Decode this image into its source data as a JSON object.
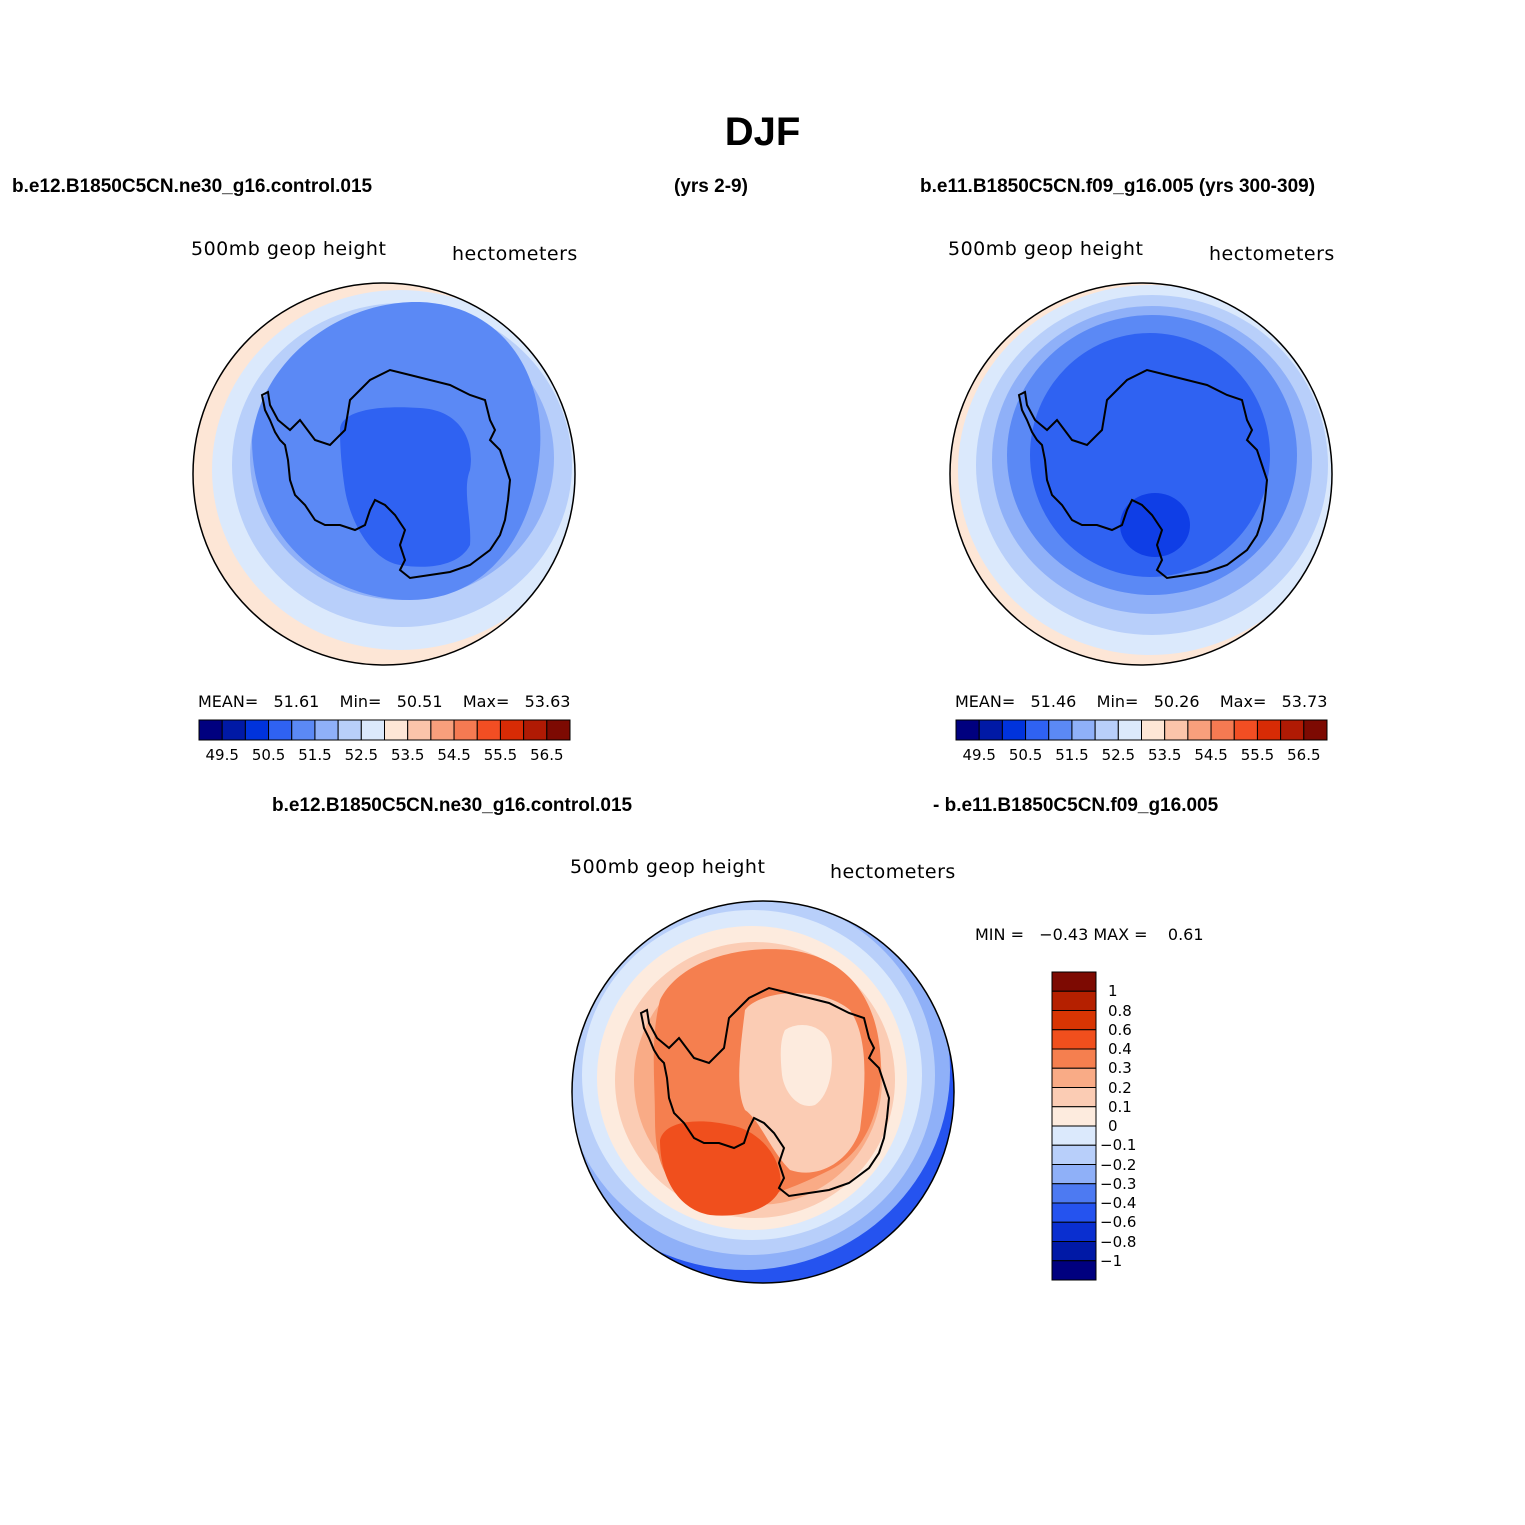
{
  "title": "DJF",
  "top_left": {
    "case": "b.e12.B1850C5CN.ne30_g16.control.015",
    "years": "(yrs 2-9)",
    "field": "500mb geop height",
    "units": "hectometers",
    "stats": {
      "mean_label": "MEAN=",
      "mean": "51.61",
      "min_label": "Min=",
      "min": "50.51",
      "max_label": "Max=",
      "max": "53.63"
    }
  },
  "top_right": {
    "case": "b.e11.B1850C5CN.f09_g16.005 (yrs 300-309)",
    "field": "500mb geop height",
    "units": "hectometers",
    "stats": {
      "mean_label": "MEAN=",
      "mean": "51.46",
      "min_label": "Min=",
      "min": "50.26",
      "max_label": "Max=",
      "max": "53.73"
    }
  },
  "bottom": {
    "case_a": "b.e12.B1850C5CN.ne30_g16.control.015",
    "case_b": "- b.e11.B1850C5CN.f09_g16.005",
    "field": "500mb geop height",
    "units": "hectometers",
    "minmax": "MIN =   −0.43 MAX =    0.61"
  },
  "horizontal_colorbar": {
    "colors": [
      "#00007f",
      "#0019a6",
      "#0033dc",
      "#2f62f2",
      "#5b89f5",
      "#8fb0f8",
      "#b8cffa",
      "#dbe9fc",
      "#fde6d6",
      "#fbc4aa",
      "#f89f7c",
      "#f57a52",
      "#f24e23",
      "#d82b05",
      "#b01a04",
      "#7d0a02"
    ],
    "labels": [
      "49.5",
      "50.5",
      "51.5",
      "52.5",
      "53.5",
      "54.5",
      "55.5",
      "56.5"
    ]
  },
  "vertical_colorbar": {
    "colors": [
      "#7d0a02",
      "#b52000",
      "#d83503",
      "#f04f1d",
      "#f57f4f",
      "#f9ab86",
      "#fbccb4",
      "#fdebde",
      "#dbe9fc",
      "#b8cffa",
      "#8fb0f8",
      "#4d7af2",
      "#2553ef",
      "#0a2fd0",
      "#0019a6",
      "#00007f"
    ],
    "labels": [
      "1",
      "0.8",
      "0.6",
      "0.4",
      "0.3",
      "0.2",
      "0.1",
      "0",
      "−0.1",
      "−0.2",
      "−0.3",
      "−0.4",
      "−0.6",
      "−0.8",
      "−1"
    ]
  }
}
